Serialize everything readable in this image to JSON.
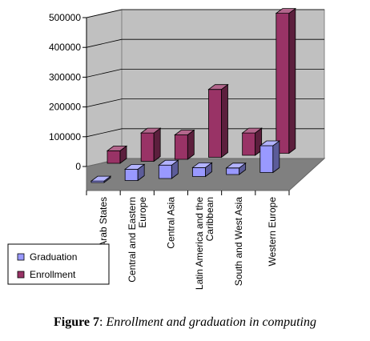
{
  "chart_data": {
    "type": "bar",
    "style": "3d-clustered-column",
    "categories": [
      "Arab States",
      "Central and Eastern Europe",
      "Central Asia",
      "Latin America and the Caribbean",
      "South and West Asia",
      "Western Europe"
    ],
    "series": [
      {
        "name": "Graduation",
        "color": "#9999ff",
        "values": [
          5000,
          38000,
          45000,
          30000,
          22000,
          90000
        ]
      },
      {
        "name": "Enrollment",
        "color": "#993366",
        "values": [
          42000,
          95000,
          82000,
          228000,
          75000,
          470000
        ]
      }
    ],
    "y_ticks": [
      "0",
      "100000",
      "200000",
      "300000",
      "400000",
      "500000"
    ],
    "ylim": [
      0,
      500000
    ],
    "legend_position": "bottom-left",
    "title": "",
    "xlabel": "",
    "ylabel": ""
  },
  "caption": {
    "number": "Figure 7",
    "separator": ": ",
    "text": "Enrollment and graduation in computing"
  }
}
